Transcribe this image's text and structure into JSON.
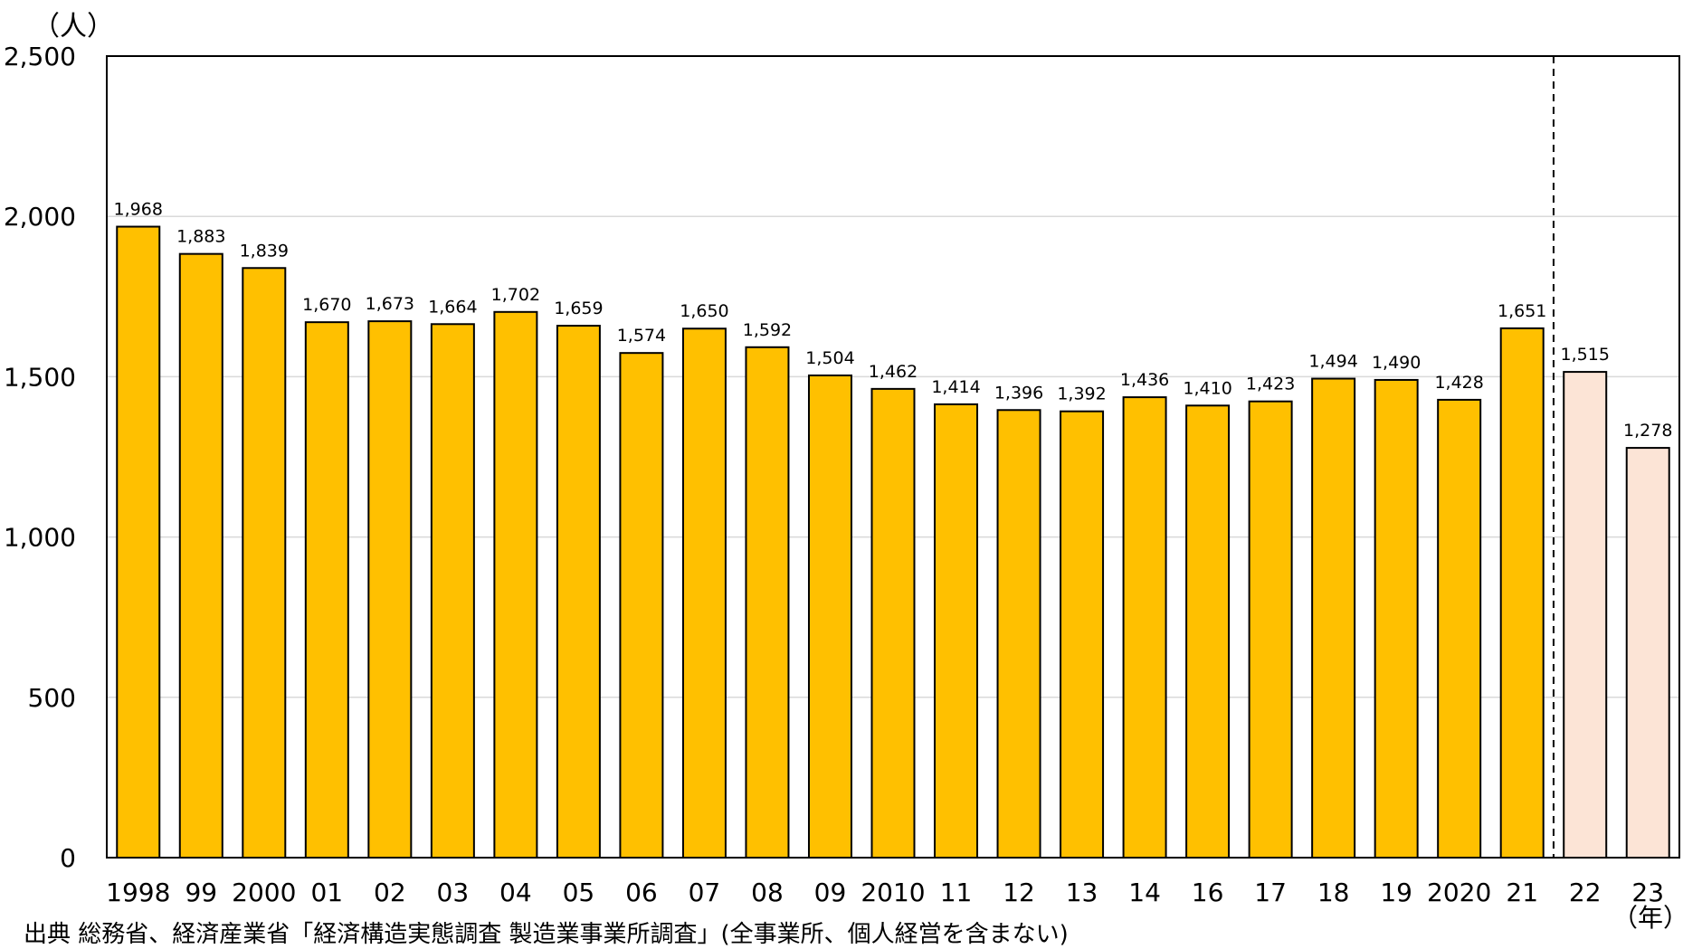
{
  "chart_data": {
    "type": "bar",
    "title": "",
    "ylabel_unit": "（人）",
    "xlabel_unit": "（年）",
    "ylim": [
      0,
      2500
    ],
    "yticks": [
      "0",
      "500",
      "1,000",
      "1,500",
      "2,000",
      "2,500"
    ],
    "ytick_values": [
      0,
      500,
      1000,
      1500,
      2000,
      2500
    ],
    "grid": true,
    "categories": [
      "1998",
      "99",
      "2000",
      "01",
      "02",
      "03",
      "04",
      "05",
      "06",
      "07",
      "08",
      "09",
      "2010",
      "11",
      "12",
      "13",
      "14",
      "16",
      "17",
      "18",
      "19",
      "2020",
      "21",
      "22",
      "23"
    ],
    "values": [
      1968,
      1883,
      1839,
      1670,
      1673,
      1664,
      1702,
      1659,
      1574,
      1650,
      1592,
      1504,
      1462,
      1414,
      1396,
      1392,
      1436,
      1410,
      1423,
      1494,
      1490,
      1428,
      1651,
      1515,
      1278
    ],
    "value_labels": [
      "1,968",
      "1,883",
      "1,839",
      "1,670",
      "1,673",
      "1,664",
      "1,702",
      "1,659",
      "1,574",
      "1,650",
      "1,592",
      "1,504",
      "1,462",
      "1,414",
      "1,396",
      "1,392",
      "1,436",
      "1,410",
      "1,423",
      "1,494",
      "1,490",
      "1,428",
      "1,651",
      "1,515",
      "1,278"
    ],
    "highlighted_from_index": 23,
    "divider_after_index": 22,
    "colors": {
      "bar": "#FFC000",
      "bar_highlight": "#FCE4D6",
      "bar_stroke": "#000000",
      "grid": "#D9D9D9",
      "axis": "#000000"
    }
  },
  "source_note": "出典  総務省、経済産業省「経済構造実態調査  製造業事業所調査」(全事業所、個人経営を含まない)"
}
